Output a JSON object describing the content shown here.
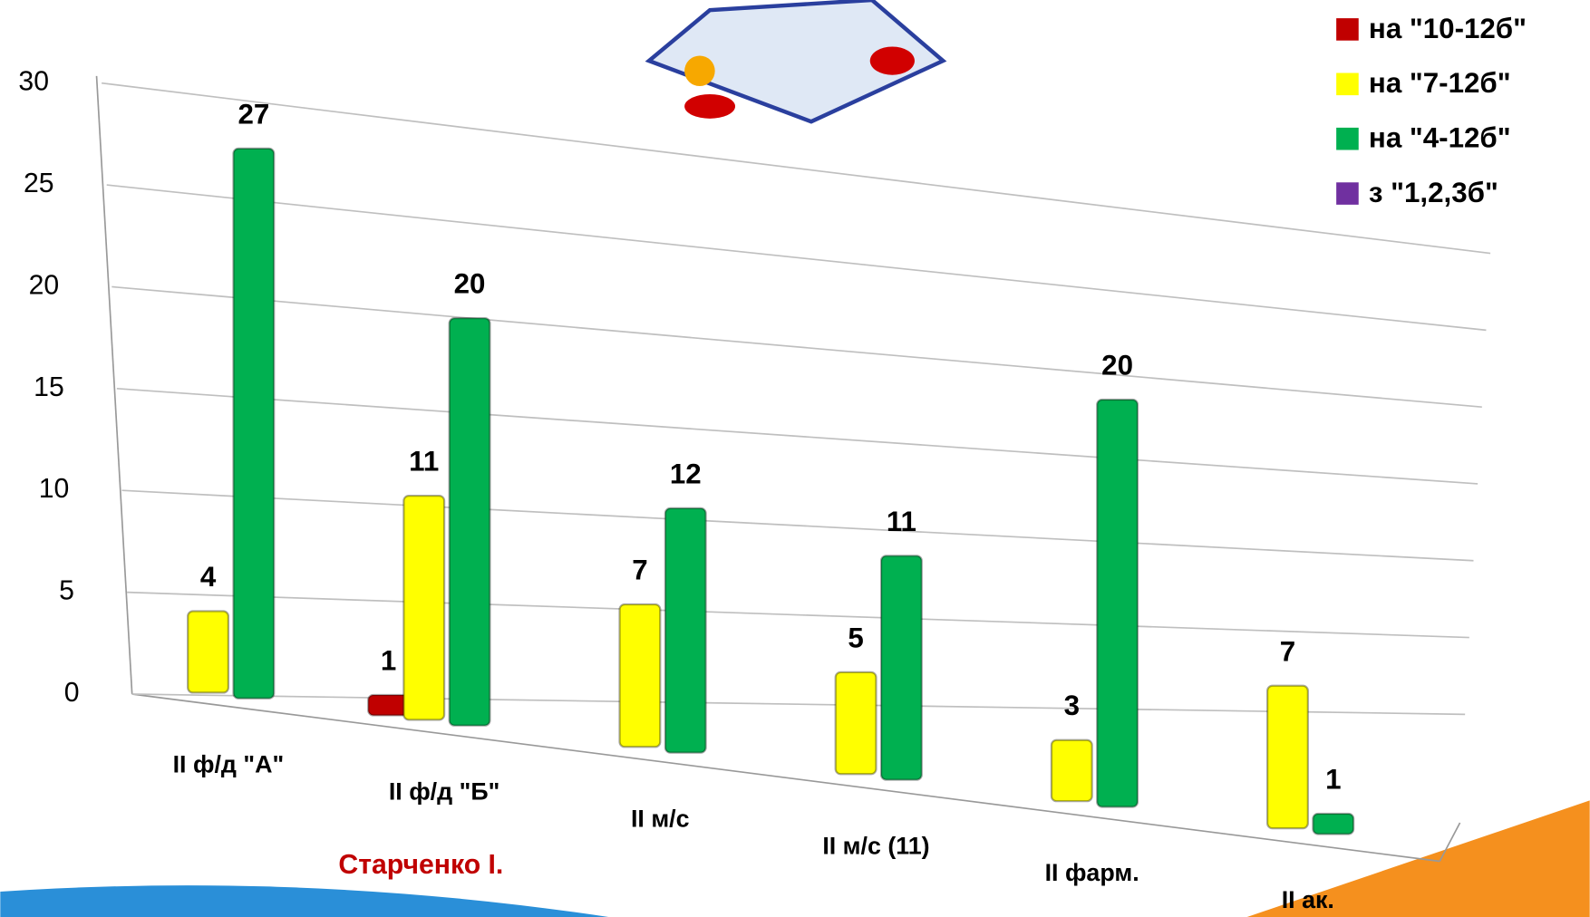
{
  "chart_data": {
    "type": "bar",
    "categories": [
      "II ф/д \"А\"",
      "II ф/д \"Б\"",
      "II м/с",
      "II м/с (11)",
      "II фарм.",
      "II ак."
    ],
    "series": [
      {
        "name": "на \"10-12б\"",
        "color": "#c00000",
        "values": [
          null,
          1,
          null,
          null,
          null,
          null
        ]
      },
      {
        "name": "на \"7-12б\"",
        "color": "#ffff00",
        "values": [
          4,
          11,
          7,
          5,
          3,
          7
        ]
      },
      {
        "name": "на \"4-12б\"",
        "color": "#00b050",
        "values": [
          27,
          20,
          12,
          11,
          20,
          1
        ]
      },
      {
        "name": "з \"1,2,3б\"",
        "color": "#7030a0",
        "values": [
          null,
          null,
          null,
          null,
          null,
          null
        ]
      }
    ],
    "ylim": [
      0,
      30
    ],
    "yticks": [
      0,
      5,
      10,
      15,
      20,
      25,
      30
    ],
    "grid": true,
    "legend": "top-right",
    "annotation": "Старченко І."
  }
}
